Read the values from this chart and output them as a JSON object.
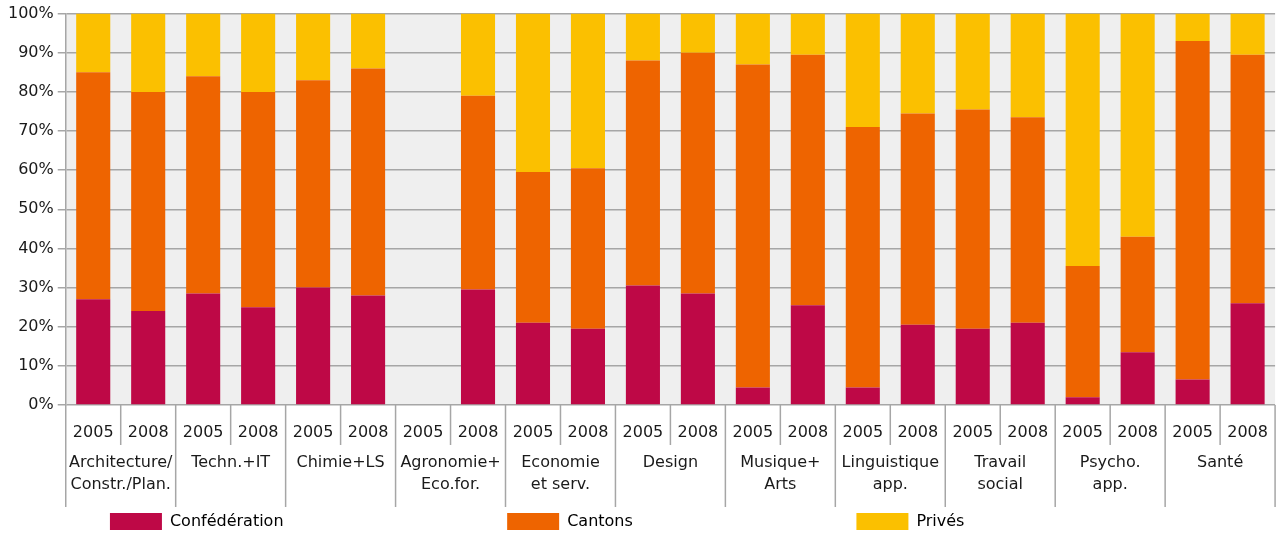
{
  "chart_data": {
    "type": "bar",
    "stacked": true,
    "categories": [
      "2005",
      "2008",
      "2005",
      "2008",
      "2005",
      "2008",
      "2005",
      "2008",
      "2005",
      "2008",
      "2005",
      "2008",
      "2005",
      "2008",
      "2005",
      "2008",
      "2005",
      "2008",
      "2005",
      "2008",
      "2005",
      "2008"
    ],
    "annotations": [
      "Architecture/\nConstr./Plan.",
      "Techn.+IT",
      "Chimie+LS",
      "Agronomie+\nEco.for.",
      "Economie\net serv.",
      "Design",
      "Musique+\nArts",
      "Linguistique\napp.",
      "Travail\nsocial",
      "Psycho.\napp.",
      "Santé"
    ],
    "series": [
      {
        "name": "Confédération",
        "color": "#be0846",
        "values": [
          27,
          24,
          28.5,
          25,
          30,
          28,
          null,
          29.5,
          21,
          19.5,
          30.5,
          28.5,
          4.5,
          25.5,
          4.5,
          20.5,
          19.5,
          21,
          2,
          13.5,
          6.5,
          26
        ]
      },
      {
        "name": "Cantons",
        "color": "#ee6400",
        "values": [
          58,
          56,
          55.5,
          55,
          53,
          58,
          null,
          49.5,
          38.5,
          41,
          57.5,
          61.5,
          82.5,
          64,
          66.5,
          54,
          56,
          52.5,
          33.5,
          29.5,
          86.5,
          63.5
        ]
      },
      {
        "name": "Privés",
        "color": "#fbc000",
        "values": [
          15,
          20,
          16,
          20,
          17,
          14,
          null,
          21,
          40.5,
          39.5,
          12,
          10,
          13,
          10.5,
          29,
          25.5,
          24.5,
          26.5,
          64.5,
          57,
          7,
          10.5
        ]
      }
    ],
    "ylim": [
      0,
      100
    ],
    "yticks": [
      {
        "value": 0,
        "label": "0%"
      },
      {
        "value": 10,
        "label": "10%"
      },
      {
        "value": 20,
        "label": "20%"
      },
      {
        "value": 30,
        "label": "30%"
      },
      {
        "value": 40,
        "label": "40%"
      },
      {
        "value": 50,
        "label": "50%"
      },
      {
        "value": 60,
        "label": "60%"
      },
      {
        "value": 70,
        "label": "70%"
      },
      {
        "value": 80,
        "label": "80%"
      },
      {
        "value": 90,
        "label": "90%"
      },
      {
        "value": 100,
        "label": "100%"
      }
    ],
    "grid": "y",
    "legend": "bottom"
  }
}
